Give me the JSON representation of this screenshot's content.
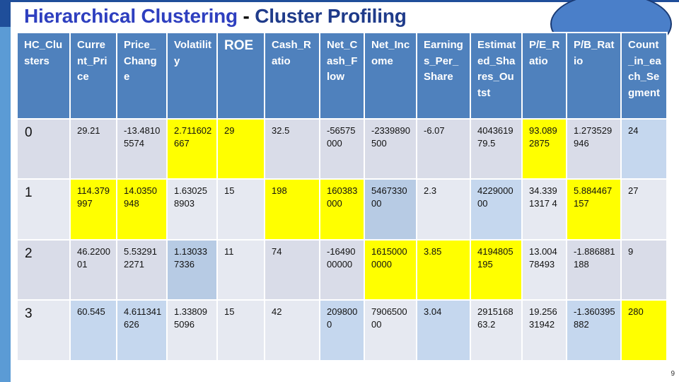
{
  "title": {
    "part1": "Hierarchical Clustering",
    "separator": " - ",
    "part2": "Cluster Profiling"
  },
  "slide_number": "9",
  "colors": {
    "header_bg": "#4f81bd",
    "highlight": "#ffff00",
    "title_blue": "#2e3fbf",
    "title_dark_blue": "#1f3b8a",
    "accent_bar": "#1f4e9a"
  },
  "table": {
    "headers": [
      "HC_Clusters",
      "Current_Price",
      "Price_Change",
      "Volatility",
      "ROE",
      "Cash_Ratio",
      "Net_Cash_Flow",
      "Net_Income",
      "Earnings_Per_Share",
      "Estimated_Shares_Outst",
      "P/E_Ratio",
      "P/B_Ratio",
      "Count_in_each_Segment"
    ],
    "rows": [
      [
        "0",
        "29.21",
        "-13.48105574",
        "2.711602667",
        "29",
        "32.5",
        "-56575000",
        "-2339890500",
        "-6.07",
        "404361979.5",
        "93.0892875",
        "1.273529946",
        "24"
      ],
      [
        "1",
        "114.379997",
        "14.0350948",
        "1.630258903",
        "15",
        "198",
        "160383000",
        "546733000",
        "2.3",
        "422900000",
        "34.3391317 4",
        "5.884467157",
        "27"
      ],
      [
        "2",
        "46.220001",
        "5.532912271",
        "1.130337336",
        "11",
        "74",
        "-1649000000",
        "16150000000",
        "3.85",
        "4194805195",
        "13.00478493",
        "-1.886881188",
        "9"
      ],
      [
        "3",
        "60.545",
        "4.611341626",
        "1.338095096",
        "15",
        "42",
        "2098000",
        "790650000",
        "3.04",
        "291516863.2",
        "19.25631942",
        "-1.360395882",
        "280"
      ]
    ],
    "highlighted_cells": [
      "row0:Volatility",
      "row0:ROE",
      "row0:P/E_Ratio",
      "row1:Current_Price",
      "row1:Price_Change",
      "row1:Cash_Ratio",
      "row1:Net_Cash_Flow",
      "row1:P/B_Ratio",
      "row2:Net_Income",
      "row2:Earnings_Per_Share",
      "row2:Estimated_Shares_Outst",
      "row3:Count_in_each_Segment"
    ]
  }
}
